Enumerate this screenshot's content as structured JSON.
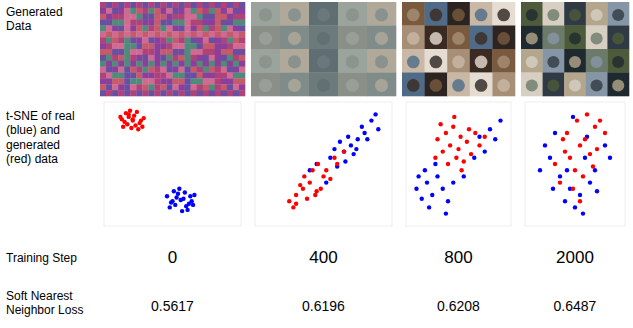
{
  "row_labels": {
    "generated": "Generated Data",
    "tsne": "t-SNE of real (blue) and generated (red) data",
    "step": "Training Step",
    "loss": "Soft Nearest Neighbor Loss"
  },
  "training_steps": [
    0,
    400,
    800,
    2000
  ],
  "losses": [
    0.5617,
    0.6196,
    0.6208,
    0.6487
  ],
  "chart_data": [
    {
      "type": "scatter",
      "xlim": [
        0,
        100
      ],
      "ylim": [
        0,
        100
      ],
      "tick_labels": false,
      "series": [
        {
          "color": "blue",
          "x": [
            46,
            50,
            54,
            58,
            62,
            66,
            48,
            52,
            56,
            60,
            64,
            51,
            55,
            59,
            63,
            57,
            49,
            61,
            53,
            65
          ],
          "values": [
            24,
            20,
            26,
            22,
            18,
            25,
            15,
            17,
            21,
            16,
            20,
            28,
            30,
            27,
            24,
            12,
            19,
            13,
            23,
            17
          ]
        },
        {
          "color": "red",
          "x": [
            12,
            15,
            18,
            21,
            24,
            27,
            14,
            17,
            20,
            23,
            26,
            29,
            16,
            19,
            22,
            25,
            13,
            28,
            21,
            18
          ],
          "values": [
            88,
            84,
            90,
            86,
            92,
            85,
            80,
            82,
            79,
            81,
            83,
            87,
            91,
            93,
            89,
            78,
            86,
            80,
            85,
            88
          ]
        }
      ]
    },
    {
      "type": "scatter",
      "xlim": [
        0,
        100
      ],
      "ylim": [
        0,
        100
      ],
      "tick_labels": false,
      "series": [
        {
          "color": "blue",
          "x": [
            45,
            55,
            60,
            65,
            70,
            75,
            80,
            85,
            58,
            68,
            72,
            78,
            88,
            62,
            52,
            82,
            66,
            74,
            40,
            90
          ],
          "values": [
            50,
            55,
            48,
            60,
            65,
            70,
            75,
            85,
            62,
            72,
            58,
            80,
            90,
            68,
            35,
            70,
            52,
            62,
            45,
            78
          ]
        },
        {
          "color": "red",
          "x": [
            25,
            30,
            35,
            28,
            40,
            45,
            38,
            50,
            33,
            42,
            55,
            48,
            60,
            36,
            44,
            52,
            30,
            58,
            46,
            65
          ],
          "values": [
            20,
            25,
            30,
            15,
            35,
            28,
            22,
            40,
            33,
            45,
            38,
            30,
            50,
            40,
            25,
            45,
            18,
            55,
            50,
            60
          ]
        }
      ]
    },
    {
      "type": "scatter",
      "xlim": [
        0,
        100
      ],
      "ylim": [
        0,
        100
      ],
      "tick_labels": false,
      "series": [
        {
          "color": "blue",
          "x": [
            10,
            15,
            20,
            25,
            30,
            22,
            35,
            40,
            18,
            28,
            45,
            70,
            80,
            85,
            90,
            75,
            65,
            55,
            38,
            12
          ],
          "values": [
            30,
            22,
            35,
            25,
            40,
            15,
            30,
            20,
            45,
            50,
            35,
            72,
            78,
            70,
            85,
            60,
            55,
            40,
            10,
            40
          ]
        },
        {
          "color": "red",
          "x": [
            30,
            38,
            45,
            52,
            60,
            35,
            42,
            50,
            58,
            66,
            40,
            48,
            55,
            62,
            70,
            33,
            46,
            75,
            53,
            28
          ],
          "values": [
            70,
            75,
            80,
            72,
            78,
            60,
            65,
            62,
            68,
            75,
            50,
            55,
            52,
            58,
            65,
            82,
            88,
            72,
            45,
            55
          ]
        }
      ]
    },
    {
      "type": "scatter",
      "xlim": [
        0,
        100
      ],
      "ylim": [
        0,
        100
      ],
      "tick_labels": false,
      "series": [
        {
          "color": "blue",
          "x": [
            15,
            25,
            35,
            45,
            55,
            65,
            20,
            30,
            40,
            50,
            60,
            70,
            80,
            28,
            42,
            58,
            72,
            85,
            48,
            62
          ],
          "values": [
            45,
            55,
            40,
            30,
            25,
            35,
            65,
            75,
            20,
            15,
            55,
            45,
            65,
            30,
            45,
            10,
            28,
            55,
            88,
            72
          ]
        },
        {
          "color": "red",
          "x": [
            30,
            40,
            50,
            60,
            70,
            35,
            45,
            55,
            65,
            75,
            42,
            52,
            62,
            72,
            48,
            58,
            68,
            80,
            38,
            55
          ],
          "values": [
            50,
            60,
            45,
            70,
            80,
            35,
            55,
            65,
            58,
            85,
            75,
            85,
            90,
            62,
            30,
            40,
            48,
            75,
            70,
            20
          ]
        }
      ]
    }
  ]
}
